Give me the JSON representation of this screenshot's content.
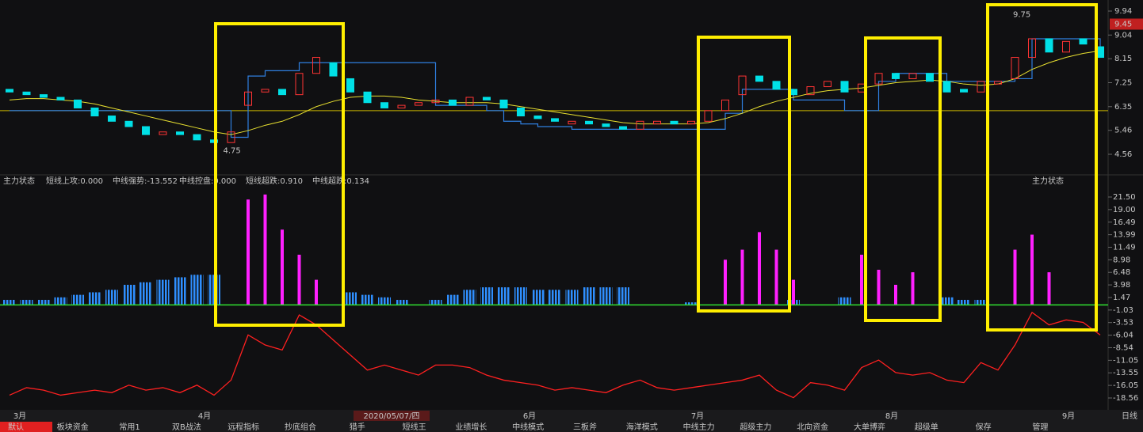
{
  "price_panel": {
    "ylim": [
      4.56,
      9.94
    ],
    "yticks": [
      9.94,
      9.04,
      8.15,
      7.25,
      6.35,
      5.46,
      4.56
    ],
    "current_price": 9.45,
    "high_label": 9.75,
    "low_label": 4.75,
    "reference_price": 6.2,
    "up_color": "#ff3434",
    "down_color": "#00e0e6",
    "ma_color": "#e8e030",
    "stop_color": "#2f7fe0",
    "candles": {
      "open": [
        7.0,
        6.9,
        6.8,
        6.7,
        6.6,
        6.3,
        6.0,
        5.8,
        5.6,
        5.3,
        5.4,
        5.3,
        5.1,
        5.0,
        6.4,
        6.9,
        7.0,
        6.8,
        7.6,
        8.0,
        7.4,
        6.9,
        6.5,
        6.3,
        6.4,
        6.5,
        6.6,
        6.4,
        6.7,
        6.6,
        6.3,
        6.0,
        5.9,
        5.7,
        5.8,
        5.7,
        5.6,
        5.5,
        5.7,
        5.8,
        5.7,
        5.8,
        6.2,
        6.8,
        7.5,
        7.3,
        7.0,
        6.8,
        7.1,
        7.3,
        6.9,
        7.2,
        7.6,
        7.4,
        7.6,
        7.3,
        7.0,
        6.9,
        7.2,
        7.4,
        8.2,
        8.9,
        8.4,
        8.9,
        8.6
      ],
      "close": [
        6.9,
        6.8,
        6.7,
        6.6,
        6.3,
        6.0,
        5.8,
        5.6,
        5.3,
        5.4,
        5.3,
        5.1,
        5.0,
        5.4,
        6.9,
        7.0,
        6.8,
        7.6,
        8.2,
        7.5,
        6.9,
        6.5,
        6.3,
        6.4,
        6.5,
        6.6,
        6.4,
        6.7,
        6.6,
        6.3,
        6.0,
        5.9,
        5.8,
        5.8,
        5.7,
        5.6,
        5.5,
        5.8,
        5.8,
        5.7,
        5.8,
        6.2,
        6.6,
        7.5,
        7.3,
        7.0,
        6.8,
        7.1,
        7.3,
        6.9,
        7.2,
        7.6,
        7.4,
        7.6,
        7.3,
        6.9,
        6.9,
        7.3,
        7.3,
        8.2,
        8.9,
        8.4,
        8.8,
        8.7,
        8.2
      ]
    },
    "ma": [
      6.6,
      6.65,
      6.65,
      6.6,
      6.55,
      6.45,
      6.3,
      6.15,
      6.0,
      5.85,
      5.7,
      5.55,
      5.4,
      5.3,
      5.45,
      5.65,
      5.8,
      6.05,
      6.35,
      6.55,
      6.7,
      6.75,
      6.75,
      6.7,
      6.6,
      6.55,
      6.5,
      6.5,
      6.5,
      6.45,
      6.35,
      6.25,
      6.15,
      6.05,
      5.95,
      5.85,
      5.75,
      5.7,
      5.7,
      5.7,
      5.7,
      5.75,
      5.9,
      6.1,
      6.35,
      6.55,
      6.7,
      6.85,
      6.95,
      7.0,
      7.05,
      7.15,
      7.25,
      7.3,
      7.35,
      7.3,
      7.2,
      7.15,
      7.2,
      7.4,
      7.75,
      8.0,
      8.2,
      8.35,
      8.45
    ],
    "stop_line": [
      6.2,
      6.2,
      6.2,
      6.2,
      6.2,
      6.2,
      6.2,
      6.2,
      6.2,
      6.2,
      6.2,
      6.2,
      6.2,
      5.2,
      7.5,
      7.7,
      7.7,
      8.0,
      8.0,
      8.0,
      8.0,
      8.0,
      8.0,
      8.0,
      8.0,
      6.4,
      6.4,
      6.4,
      6.2,
      5.8,
      5.7,
      5.6,
      5.6,
      5.5,
      5.5,
      5.5,
      5.5,
      5.5,
      5.5,
      5.5,
      5.5,
      5.5,
      6.1,
      7.0,
      7.0,
      7.0,
      6.6,
      6.6,
      6.6,
      6.2,
      6.2,
      7.3,
      7.6,
      7.6,
      7.6,
      7.3,
      7.3,
      7.3,
      7.3,
      7.4,
      8.9,
      8.9,
      8.9,
      8.9,
      8.4
    ]
  },
  "indicator": {
    "title": "主力状态",
    "legend": [
      "短线上攻:0.000",
      "中线强势:-13.552",
      "中线控盘:0.000",
      "短线超跌:0.910",
      "中线超跌:0.134"
    ],
    "legend_colors": [
      "#e040e0",
      "#ff3030",
      "#e8e030",
      "#2f8fff",
      "#30e030"
    ],
    "ylim": [
      -18.56,
      21.5
    ],
    "yticks": [
      {
        "value": 21.5,
        "label": "21.50"
      },
      {
        "value": 19.0,
        "label": "19.00"
      },
      {
        "value": 16.49,
        "label": "16.49"
      },
      {
        "value": 13.99,
        "label": "13.99"
      },
      {
        "value": 11.49,
        "label": "11.49"
      },
      {
        "value": 8.98,
        "label": "8.98"
      },
      {
        "value": 6.48,
        "label": "6.48"
      },
      {
        "value": 3.98,
        "label": "3.98"
      },
      {
        "value": 1.47,
        "label": "1.47"
      },
      {
        "value": -1.03,
        "label": "-1.03"
      },
      {
        "value": -3.53,
        "label": "-3.53"
      },
      {
        "value": -6.04,
        "label": "-6.04"
      },
      {
        "value": -8.54,
        "label": "-8.54"
      },
      -11.05,
      {
        "value": -13.55,
        "label": "-13.55"
      },
      {
        "value": -16.05,
        "label": "-16.05"
      },
      -18.56
    ],
    "blue": [
      1,
      1,
      1,
      1.5,
      2,
      2.5,
      3,
      4,
      4.5,
      5,
      5.5,
      6,
      6,
      0,
      0,
      0,
      0,
      0,
      0,
      0,
      2.5,
      2,
      1.5,
      1,
      0,
      1,
      2,
      3,
      3.5,
      3.5,
      3.5,
      3,
      3,
      3,
      3.5,
      3.5,
      3.5,
      0,
      0,
      0,
      0.5,
      0,
      0,
      0,
      0,
      0,
      1,
      0,
      0,
      1.5,
      0,
      0,
      0,
      0,
      0,
      1.5,
      1,
      1,
      0,
      0,
      0,
      0,
      0,
      0,
      0
    ],
    "magenta": [
      0,
      0,
      0,
      0,
      0,
      0,
      0,
      0,
      0,
      0,
      0,
      0,
      0,
      0,
      21,
      22,
      15,
      10,
      5,
      0,
      0,
      0,
      0,
      0,
      0,
      0,
      0,
      0,
      0,
      0,
      0,
      0,
      0,
      0,
      0,
      0,
      0,
      0,
      0,
      0,
      0,
      0,
      9,
      11,
      14.5,
      11,
      5,
      0,
      0,
      0,
      10,
      7,
      4,
      6.5,
      0,
      0,
      0,
      0,
      0,
      11,
      14,
      6.5,
      0,
      0,
      0
    ],
    "red": [
      -18,
      -16.5,
      -17,
      -18,
      -17.5,
      -17,
      -17.5,
      -16,
      -17,
      -16.5,
      -17.5,
      -16,
      -18,
      -15,
      -6,
      -8,
      -9,
      -2,
      -4,
      -7,
      -10,
      -13,
      -12,
      -13,
      -14,
      -12,
      -12,
      -12.5,
      -14,
      -15,
      -15.5,
      -16,
      -17,
      -16.5,
      -17,
      -17.5,
      -16,
      -15,
      -16.5,
      -17,
      -16.5,
      -16,
      -15.5,
      -15,
      -14,
      -17,
      -18.5,
      -15.5,
      -16,
      -17,
      -12.5,
      -11,
      -13.5,
      -14,
      -13.5,
      -15,
      -15.5,
      -11.5,
      -13,
      -8,
      -1.5,
      -4,
      -3,
      -3.5,
      -6
    ]
  },
  "x_axis": {
    "months": [
      "3月",
      "4月",
      "6月",
      "7月",
      "8月",
      "9月"
    ],
    "date_cursor": "2020/05/07/四",
    "period": "日线"
  },
  "tabs": [
    "默认",
    "板块资金",
    "常用1",
    "双B战法",
    "远程指标",
    "抄底组合",
    "猎手",
    "短线王",
    "业绩增长",
    "中线模式",
    "三板斧",
    "海洋模式",
    "中线主力",
    "超级主力",
    "北向资金",
    "大单博弈",
    "超级单",
    "保存",
    "管理"
  ]
}
